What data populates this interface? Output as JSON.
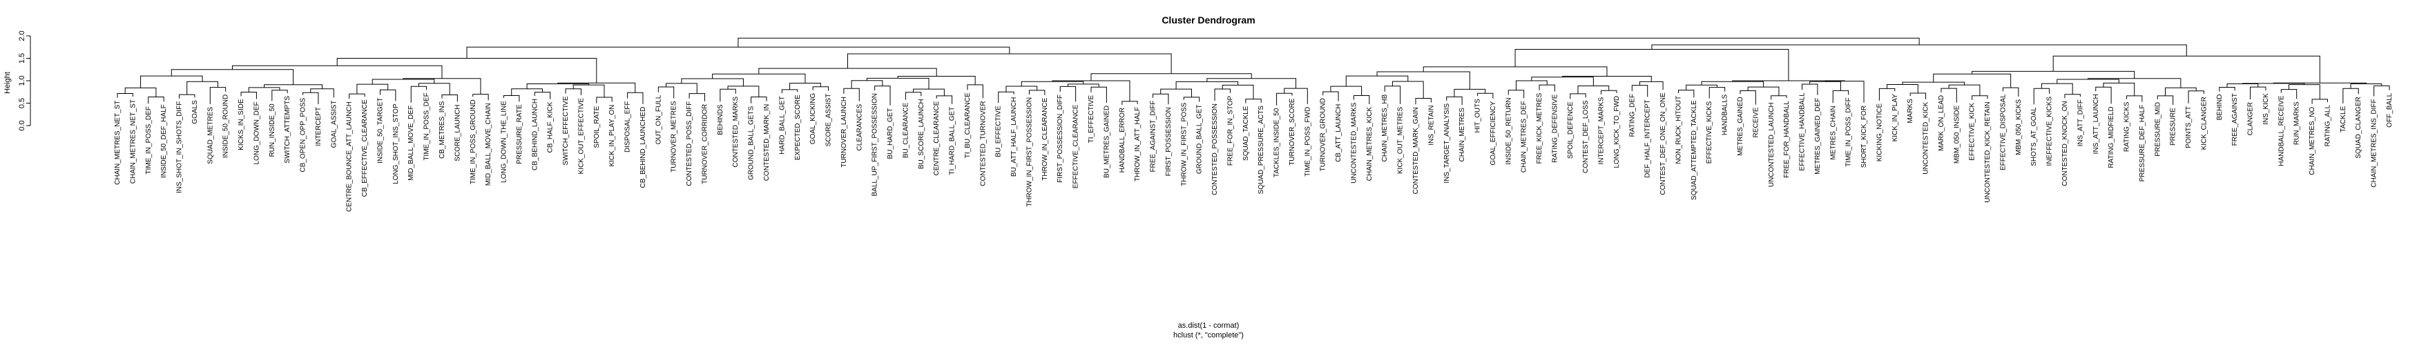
{
  "chart_data": {
    "type": "dendrogram",
    "title": "Cluster Dendrogram",
    "ylabel": "Height",
    "xlabel": "as.dist(1 - cormat)",
    "sub": "hclust (*, \"complete\")",
    "ylim": [
      0,
      2.0
    ],
    "yticks": [
      "0.0",
      "0.5",
      "1.0",
      "1.5",
      "2.0"
    ],
    "root_height": 1.95,
    "clusters": [
      {
        "height": 1.5,
        "groups": [
          {
            "height": 1.25,
            "labels": [
              "CHAIN_METRES_NET_ST",
              "CHAIN_METRES_NET_ST",
              "TIME_IN_POSS_DEF",
              "INSIDE_50_DEF_HALF",
              "INS_SHOT_IN_SHOTS_DIFF",
              "GOALS",
              "SQUAD_METRES",
              "INSIDE_50_ROUND",
              "KICKS_IN_SIDE",
              "LONG_DOWN_DEF",
              "RUN_INSIDE_50",
              "SWITCH_ATTEMPTS",
              "CB_OPEN_OPP_POSS",
              "INTERCEPT",
              "GOAL_ASSIST"
            ]
          },
          {
            "height": 1.05,
            "labels": [
              "CENTRE_BOUNCE_ATT_LAUNCH",
              "CB_EFFECTIVE_CLEARANCE",
              "INSIDE_50_TARGET",
              "LONG_SHOT_INS_STOP",
              "MID_BALL_MOVE_DEF",
              "TIME_IN_POSS_DEF",
              "CB_METRES_INS",
              "SCORE_LAUNCH",
              "TIME_IN_POSS_GROUND",
              "MID_BALL_MOVE_CHAIN"
            ]
          },
          {
            "height": 0.95,
            "labels": [
              "LONG_DOWN_THE_LINE",
              "PRESSURE_RATE",
              "CB_BEHIND_LAUNCH",
              "CB_HALF_KICK",
              "SWITCH_EFFECTIVE",
              "KICK_OUT_EFFECTIVE",
              "SPOIL_RATE",
              "KICK_IN_PLAY_ON",
              "DISPOSAL_EFF",
              "CB_BEHIND_LAUNCHED"
            ]
          }
        ]
      },
      {
        "height": 1.6,
        "groups": [
          {
            "height": 1.15,
            "labels": [
              "OUT_ON_FULL",
              "TURNOVER_METRES",
              "CONTESTED_POSS_DIFF",
              "TURNOVER_CORRIDOR",
              "BEHINDS",
              "CONTESTED_MARKS",
              "GROUND_BALL_GETS",
              "CONTESTED_MARK_IN",
              "HARD_BALL_GET",
              "EXPECTED_SCORE",
              "GOAL_KICKING",
              "SCORE_ASSIST"
            ]
          },
          {
            "height": 1.1,
            "labels": [
              "TURNOVER_LAUNCH",
              "CLEARANCES",
              "BALL_UP_FIRST_POSSESSION",
              "BU_HARD_GET",
              "BU_CLEARANCE",
              "BU_SCORE_LAUNCH",
              "CENTRE_CLEARANCE",
              "TI_HARD_BALL_GET",
              "TI_BU_CLEARANCE",
              "CONTESTED_TURNOVER"
            ]
          },
          {
            "height": 1.0,
            "labels": [
              "BU_EFFECTIVE",
              "BU_ATT_HALF_LAUNCH",
              "THROW_IN_FIRST_POSSESSION",
              "THROW_IN_CLEARANCE",
              "FIRST_POSSESSION_DIFF",
              "EFFECTIVE_CLEARANCE",
              "TI_EFFECTIVE",
              "BU_METRES_GAINED",
              "HANDBALL_ERROR",
              "THROW_IN_ATT_HALF"
            ]
          },
          {
            "height": 1.05,
            "labels": [
              "FREE_AGAINST_DIFF",
              "FIRST_POSSESSION",
              "THROW_IN_FIRST_POSS",
              "GROUND_BALL_GET",
              "CONTESTED_POSSESSION",
              "FREE_FOR_IN_STOP",
              "SQUAD_TACKLE",
              "SQUAD_PRESSURE_ACTS",
              "TACKLES_INSIDE_50",
              "TURNOVER_SCORE",
              "TIME_IN_POSS_FWD"
            ]
          }
        ]
      },
      {
        "height": 1.7,
        "groups": [
          {
            "height": 1.2,
            "labels": [
              "TURNOVER_GROUND",
              "CB_ATT_LAUNCH",
              "UNCONTESTED_MARKS",
              "CHAIN_METRES_KICK",
              "CHAIN_METRES_HB",
              "KICK_OUT_METRES",
              "CONTESTED_MARK_GAIN",
              "INS_RETAIN",
              "INS_TARGET_ANALYSIS",
              "CHAIN_METRES",
              "HIT_OUTS",
              "GOAL_EFFICIENCY"
            ]
          },
          {
            "height": 1.1,
            "labels": [
              "INSIDE_50_RETURN",
              "CHAIN_METRES_DEF",
              "FREE_KICK_METRES",
              "RATING_DEFENSIVE",
              "SPOIL_DEFENCE",
              "CONTEST_DEF_LOSS",
              "INTERCEPT_MARKS",
              "LONG_KICK_TO_FWD",
              "RATING_DEF",
              "DEF_HALF_INTERCEPT",
              "CONTEST_DEF_ONE_ON_ONE"
            ]
          },
          {
            "height": 1.0,
            "labels": [
              "NON_RUCK_HITOUT",
              "SQUAD_ATTEMPTED_TACKLE",
              "EFFECTIVE_KICKS",
              "HANDBALLS",
              "METRES_GAINED",
              "RECEIVE",
              "UNCONTESTED_LAUNCH",
              "FREE_FOR_HANDBALL",
              "EFFECTIVE_HANDBALL",
              "METRES_GAINED_DEF",
              "METRES_CHAIN",
              "TIME_IN_POSS_DIFF",
              "SHORT_KICK_FOR"
            ]
          }
        ]
      },
      {
        "height": 1.55,
        "groups": [
          {
            "height": 1.15,
            "labels": [
              "KICKING_NOTICE",
              "KICK_IN_PLAY",
              "MARKS",
              "UNCONTESTED_KICK",
              "MARK_ON_LEAD",
              "MBM_050_INSIDE",
              "EFFECTIVE_KICK",
              "UNCONTESTED_KICK_RETAIN",
              "EFFECTIVE_DISPOSAL",
              "MBM_050_KICKS"
            ]
          },
          {
            "height": 1.05,
            "labels": [
              "SHOTS_AT_GOAL",
              "INEFFECTIVE_KICKS",
              "CONTESTED_KNOCK_ON",
              "INS_ATT_DIFF",
              "INS_ATT_LAUNCH",
              "RATING_MIDFIELD",
              "RATING_KICKS",
              "PRESSURE_DEF_HALF",
              "PRESSURE_MID",
              "PRESSURE",
              "POINTS_ATT",
              "KICK_CLANGER"
            ]
          },
          {
            "height": 0.95,
            "labels": [
              "BEHIND",
              "FREE_AGAINST",
              "CLANGER",
              "INS_KICK",
              "HANDBALL_RECEIVE",
              "RUN_MARKS",
              "CHAIN_METRES_NO",
              "RATING_ALL",
              "TACKLE",
              "SQUAD_CLANGER",
              "CHAIN_METRES_INS_DIFF",
              "OFF_BALL"
            ]
          }
        ]
      }
    ]
  }
}
